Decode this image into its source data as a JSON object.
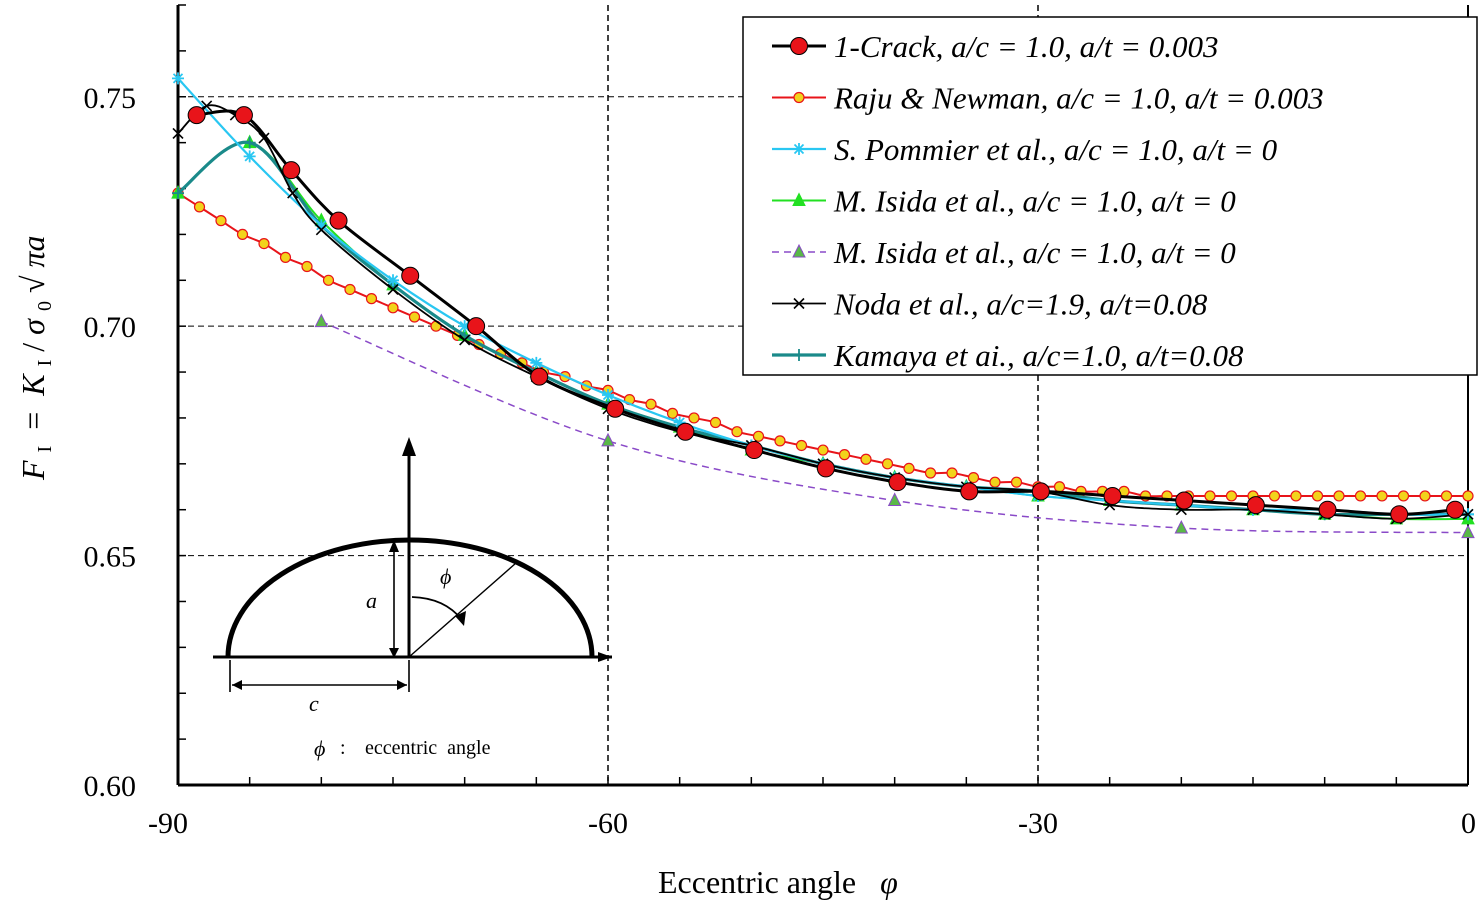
{
  "chart_data": {
    "type": "line",
    "title": "",
    "xlabel": "Eccentric angle",
    "xlabel_symbol": "φ",
    "ylabel": "F_I = K_I/σ_0√πa",
    "ylabel_parts": {
      "F": "F",
      "F_sub": "I",
      "eq": " = ",
      "K": "K",
      "K_sub": "I",
      "slash": "/",
      "sigma": "σ",
      "sigma_sub": "0",
      "root": "√",
      "pi_a": "πa"
    },
    "xlim": [
      -90,
      0
    ],
    "ylim": [
      0.6,
      0.77
    ],
    "xticks": [
      -90,
      -60,
      -30,
      0
    ],
    "xtick_labels": [
      "-90",
      "-60",
      "-30",
      "0"
    ],
    "yticks": [
      0.6,
      0.65,
      0.7,
      0.75
    ],
    "ytick_labels": [
      "0.60",
      "0.65",
      "0.70",
      "0.75"
    ],
    "grid": true,
    "legend_position": "top-right",
    "series": [
      {
        "name": "1-Crack, a/c = 1.0, a/t = 0.003",
        "color": "#000000",
        "marker": "circle",
        "marker_color": "#e8141a",
        "line": "solid",
        "x": [
          -88.7,
          -85.4,
          -82.1,
          -78.8,
          -73.8,
          -69.2,
          -64.8,
          -59.5,
          -54.6,
          -49.8,
          -44.8,
          -39.8,
          -34.8,
          -29.8,
          -24.8,
          -19.8,
          -14.8,
          -9.8,
          -4.8,
          -0.9
        ],
        "y": [
          0.746,
          0.746,
          0.734,
          0.723,
          0.711,
          0.7,
          0.689,
          0.682,
          0.677,
          0.673,
          0.669,
          0.666,
          0.664,
          0.664,
          0.663,
          0.662,
          0.661,
          0.66,
          0.659,
          0.66
        ]
      },
      {
        "name": "Raju & Newman, a/c = 1.0, a/t = 0.003",
        "color": "#e8141a",
        "marker": "circle-small",
        "marker_color": "#f2d31b",
        "line": "solid",
        "x": [
          -90,
          -88.5,
          -87,
          -85.5,
          -84,
          -82.5,
          -81,
          -79.5,
          -78,
          -76.5,
          -75,
          -73.5,
          -72,
          -70.5,
          -69,
          -67.5,
          -66,
          -64.5,
          -63,
          -61.5,
          -60,
          -58.5,
          -57,
          -55.5,
          -54,
          -52.5,
          -51,
          -49.5,
          -48,
          -46.5,
          -45,
          -43.5,
          -42,
          -40.5,
          -39,
          -37.5,
          -36,
          -34.5,
          -33,
          -31.5,
          -30,
          -28.5,
          -27,
          -25.5,
          -24,
          -22.5,
          -21,
          -19.5,
          -18,
          -16.5,
          -15,
          -13.5,
          -12,
          -10.5,
          -9,
          -7.5,
          -6,
          -4.5,
          -3,
          -1.5,
          0
        ],
        "y": [
          0.729,
          0.726,
          0.723,
          0.72,
          0.718,
          0.715,
          0.713,
          0.71,
          0.708,
          0.706,
          0.704,
          0.702,
          0.7,
          0.698,
          0.696,
          0.694,
          0.692,
          0.69,
          0.689,
          0.687,
          0.686,
          0.684,
          0.683,
          0.681,
          0.68,
          0.679,
          0.677,
          0.676,
          0.675,
          0.674,
          0.673,
          0.672,
          0.671,
          0.67,
          0.669,
          0.668,
          0.668,
          0.667,
          0.666,
          0.666,
          0.665,
          0.665,
          0.664,
          0.664,
          0.664,
          0.663,
          0.663,
          0.663,
          0.663,
          0.663,
          0.663,
          0.663,
          0.663,
          0.663,
          0.663,
          0.663,
          0.663,
          0.663,
          0.663,
          0.663,
          0.663
        ]
      },
      {
        "name": "S. Pommier et al., a/c = 1.0, a/t = 0",
        "color": "#29c7f2",
        "marker": "star",
        "marker_color": "#29c7f2",
        "line": "solid",
        "x": [
          -90,
          -85,
          -80,
          -75,
          -70,
          -65,
          -60,
          -55,
          -50,
          -45,
          -40,
          -35,
          -30,
          -25,
          -20,
          -15,
          -10,
          -5,
          0
        ],
        "y": [
          0.754,
          0.737,
          0.722,
          0.71,
          0.7,
          0.692,
          0.685,
          0.679,
          0.674,
          0.67,
          0.667,
          0.665,
          0.663,
          0.662,
          0.661,
          0.66,
          0.66,
          0.659,
          0.659
        ]
      },
      {
        "name": "M. Isida et al., a/c = 1.0, a/t = 0",
        "color": "#22e022",
        "marker": "triangle",
        "marker_color": "#22e022",
        "line": "solid",
        "x": [
          -90,
          -85,
          -80,
          -75,
          -70,
          -65,
          -60,
          -55,
          -50,
          -45,
          -40,
          -35,
          -30,
          -25,
          -20,
          -15,
          -10,
          -5,
          0
        ],
        "y": [
          0.729,
          0.74,
          0.723,
          0.709,
          0.698,
          0.69,
          0.683,
          0.678,
          0.673,
          0.67,
          0.667,
          0.665,
          0.663,
          0.662,
          0.661,
          0.66,
          0.659,
          0.658,
          0.658
        ]
      },
      {
        "name": "M. Isida et al., a/c = 1.0, a/t = 0",
        "color": "#8a4ac8",
        "marker": "triangle",
        "marker_color": "#5ab848",
        "line": "dashed",
        "x": [
          -80,
          -60,
          -40,
          -20,
          0
        ],
        "y": [
          0.701,
          0.675,
          0.662,
          0.656,
          0.655
        ]
      },
      {
        "name": "Noda et al., a/c=1.9, a/t=0.08",
        "color": "#000000",
        "marker": "x",
        "marker_color": "#000000",
        "line": "solid",
        "x": [
          -90,
          -88,
          -86,
          -84,
          -82,
          -80,
          -75,
          -70,
          -65,
          -60,
          -55,
          -50,
          -45,
          -40,
          -35,
          -30,
          -25,
          -20,
          -15,
          -10,
          -5,
          0
        ],
        "y": [
          0.742,
          0.748,
          0.746,
          0.741,
          0.729,
          0.721,
          0.708,
          0.697,
          0.689,
          0.682,
          0.677,
          0.674,
          0.67,
          0.667,
          0.665,
          0.664,
          0.661,
          0.66,
          0.66,
          0.659,
          0.658,
          0.659
        ]
      },
      {
        "name": "Kamaya et ai., a/c=1.0, a/t=0.08",
        "color": "#1a8a8a",
        "marker": "plus",
        "marker_color": "#1a8a8a",
        "line": "solid",
        "x": [
          -90,
          -85,
          -80,
          -75,
          -70,
          -65,
          -60,
          -55,
          -50,
          -45,
          -40,
          -35,
          -30,
          -25,
          -20,
          -15,
          -10,
          -5,
          0
        ],
        "y": [
          0.729,
          0.74,
          0.722,
          0.709,
          0.698,
          0.69,
          0.683,
          0.678,
          0.674,
          0.67,
          0.667,
          0.665,
          0.664,
          0.662,
          0.661,
          0.66,
          0.659,
          0.659,
          0.659
        ]
      }
    ],
    "inset": {
      "a_label": "a",
      "c_label": "c",
      "phi_label": "ϕ",
      "caption_symbol": "ϕ",
      "caption_colon": ":",
      "caption_text": "eccentric  angle"
    }
  }
}
